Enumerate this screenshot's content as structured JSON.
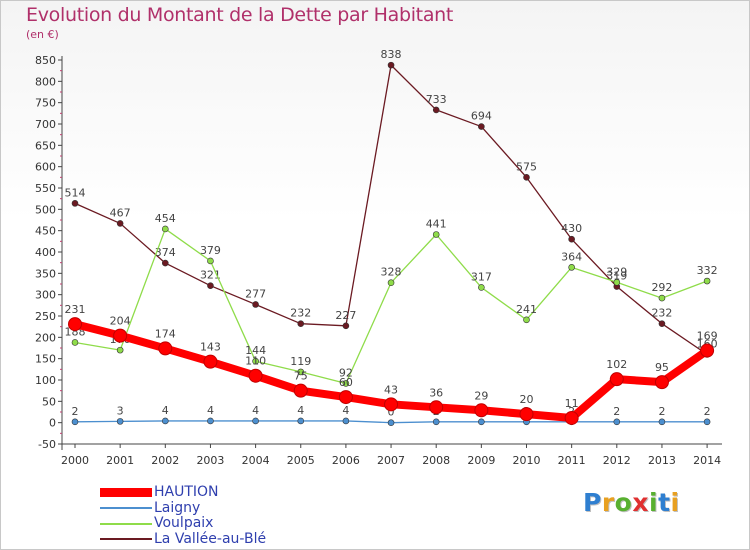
{
  "chart_data": {
    "type": "line",
    "title": "Evolution du Montant de la Dette par Habitant",
    "unit_label": "(en €)",
    "ylim": [
      -50,
      850
    ],
    "y_ticks": [
      -50,
      0,
      50,
      100,
      150,
      200,
      250,
      300,
      350,
      400,
      450,
      500,
      550,
      600,
      650,
      700,
      750,
      800,
      850
    ],
    "categories": [
      "2000",
      "2001",
      "2002",
      "2003",
      "2004",
      "2005",
      "2006",
      "2007",
      "2008",
      "2009",
      "2010",
      "2011",
      "2012",
      "2013",
      "2014"
    ],
    "grid": false,
    "legend_position": "bottom-left",
    "series": [
      {
        "name": "La Vallée-au-Blé",
        "color": "#6b1a22",
        "values": [
          514,
          467,
          374,
          321,
          277,
          232,
          227,
          838,
          733,
          694,
          575,
          430,
          319,
          232,
          160
        ]
      },
      {
        "name": "Voulpaix",
        "color": "#8fdc4a",
        "values": [
          188,
          170,
          454,
          379,
          144,
          119,
          92,
          328,
          441,
          317,
          241,
          364,
          329,
          292,
          332
        ]
      },
      {
        "name": "Laigny",
        "color": "#4c8fcf",
        "values": [
          2,
          3,
          4,
          4,
          4,
          4,
          4,
          0,
          2,
          2,
          2,
          2,
          2,
          2,
          2
        ]
      },
      {
        "name": "HAUTION",
        "color": "#ff0000",
        "values": [
          231,
          204,
          174,
          143,
          110,
          75,
          60,
          43,
          36,
          29,
          20,
          11,
          102,
          95,
          169
        ]
      }
    ]
  },
  "legend": [
    {
      "label": "HAUTION",
      "color": "#ff0000"
    },
    {
      "label": "Laigny",
      "color": "#4c8fcf"
    },
    {
      "label": "Voulpaix",
      "color": "#8fdc4a"
    },
    {
      "label": "La Vallée-au-Blé",
      "color": "#6b1a22"
    }
  ],
  "logo": {
    "letters": [
      "P",
      "r",
      "o",
      "x",
      "i",
      "t",
      "i"
    ],
    "colors": [
      "#2f7fd0",
      "#e8a020",
      "#58b030",
      "#e03030",
      "#58b030",
      "#2f7fd0",
      "#e8a020"
    ]
  }
}
